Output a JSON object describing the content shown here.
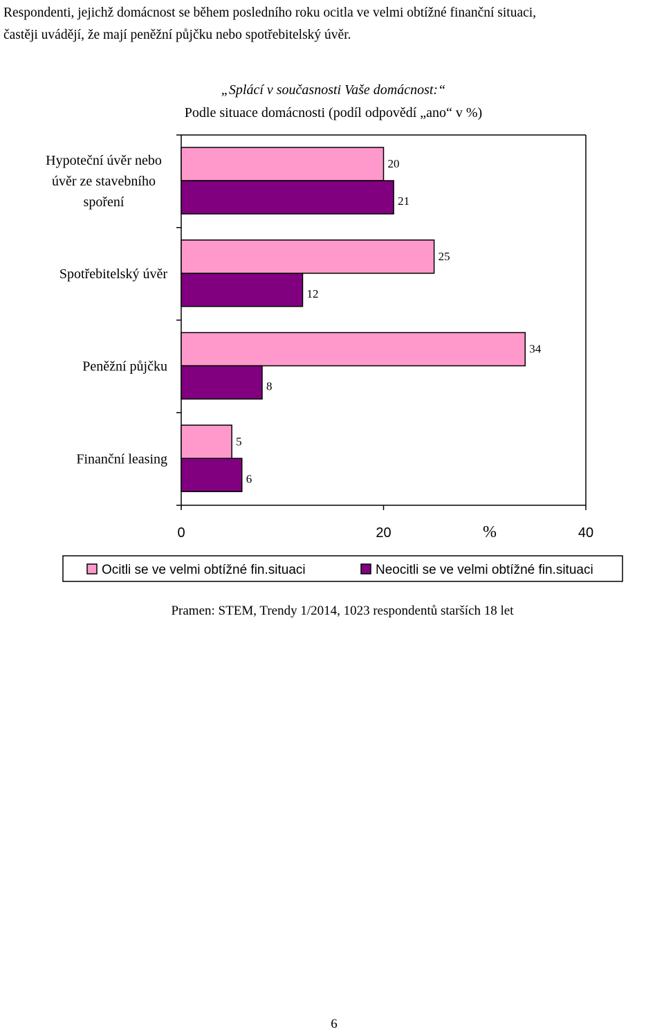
{
  "intro": {
    "line1": "Respondenti, jejichž domácnost se během posledního roku ocitla ve velmi obtížné finanční situaci,",
    "line2": "častěji uvádějí, že mají peněžní půjčku nebo spotřebitelský úvěr."
  },
  "chart_data": {
    "type": "bar",
    "orientation": "horizontal",
    "title": "„Splácí v současnosti Vaše domácnost:“",
    "subtitle": "Podle situace domácnosti (podíl odpovědí „ano“ v %)",
    "categories": [
      [
        "Hypoteční úvěr nebo",
        "úvěr ze stavebního",
        "spoření"
      ],
      [
        "Spotřebitelský úvěr"
      ],
      [
        "Peněžní půjčku"
      ],
      [
        "Finanční leasing"
      ]
    ],
    "series": [
      {
        "name": "Ocitli se ve velmi obtížné fin.situaci",
        "values": [
          20,
          25,
          34,
          5
        ],
        "color": "#ff99cc"
      },
      {
        "name": "Neocitli se ve velmi obtížné fin.situaci",
        "values": [
          21,
          12,
          8,
          6
        ],
        "color": "#800080"
      }
    ],
    "xlabel": "%",
    "xlim": [
      0,
      40
    ],
    "xticks": [
      0,
      20,
      40
    ],
    "legend_position": "bottom",
    "grid": false
  },
  "source": "Pramen: STEM, Trendy 1/2014, 1023 respondentů starších 18 let",
  "page_number": "6"
}
